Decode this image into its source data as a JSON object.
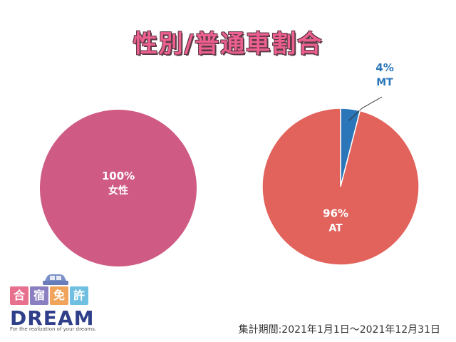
{
  "title": "性別/普通車割合",
  "period": "集計期間:2021年1月1日〜2021年12月31日",
  "logo": {
    "chars": [
      "合",
      "宿",
      "免",
      "許"
    ],
    "char_colors": [
      "#e8708f",
      "#8a7fc0",
      "#f0a35a",
      "#6fc0e0"
    ],
    "wordmark": "DREAM",
    "tagline": "For the realization of your dreams."
  },
  "chart_data": [
    {
      "type": "pie",
      "slices": [
        {
          "name": "女性",
          "value": 100,
          "label": "100%",
          "color": "#cf5a84"
        }
      ]
    },
    {
      "type": "pie",
      "slices": [
        {
          "name": "MT",
          "value": 4,
          "label": "4%",
          "color": "#2a76b8"
        },
        {
          "name": "AT",
          "value": 96,
          "label": "96%",
          "color": "#e2625c"
        }
      ]
    }
  ]
}
